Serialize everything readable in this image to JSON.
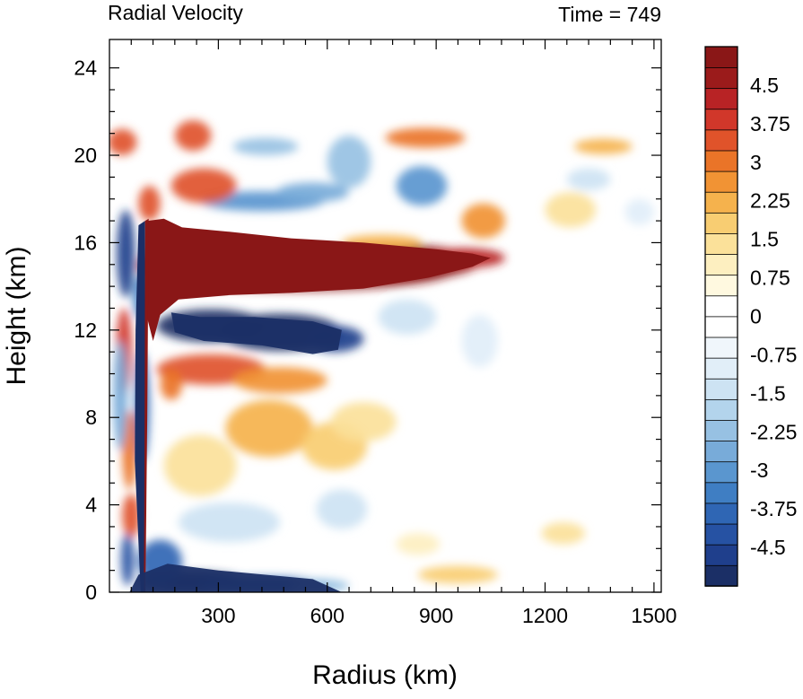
{
  "chart_data": {
    "type": "heatmap",
    "title": "Radial Velocity",
    "subtitle": "Time = 749",
    "xlabel": "Radius (km)",
    "ylabel": "Height (km)",
    "xlim": [
      0,
      1520
    ],
    "ylim": [
      0,
      25.3
    ],
    "x_ticks": [
      300,
      600,
      900,
      1200,
      1500
    ],
    "x_tick_labels": [
      "300",
      "600",
      "900",
      "1200",
      "1500"
    ],
    "y_ticks": [
      0,
      4,
      8,
      12,
      16,
      20,
      24
    ],
    "y_tick_labels": [
      "0",
      "4",
      "8",
      "12",
      "16",
      "20",
      "24"
    ],
    "colorbar": {
      "min": -5.25,
      "max": 5.25,
      "step": 0.375,
      "tick_labels": [
        "4.5",
        "3.75",
        "3",
        "2.25",
        "1.5",
        "0.75",
        "0",
        "-0.75",
        "-1.5",
        "-2.25",
        "-3",
        "-3.75",
        "-4.5"
      ],
      "tick_values": [
        4.5,
        3.75,
        3,
        2.25,
        1.5,
        0.75,
        0,
        -0.75,
        -1.5,
        -2.25,
        -3,
        -3.75,
        -4.5
      ],
      "colors_low_to_high": [
        "#1b2f66",
        "#1f3f8c",
        "#2652a3",
        "#2f66b4",
        "#3f7ec3",
        "#5a96cf",
        "#78abd9",
        "#97c1e3",
        "#b3d4ec",
        "#cde3f3",
        "#e1eef8",
        "#f0f6fb",
        "#ffffff",
        "#ffffff",
        "#fff9e0",
        "#fdefc0",
        "#fbe19a",
        "#f8cd72",
        "#f5b24d",
        "#f19334",
        "#ea7428",
        "#e0532a",
        "#d1372a",
        "#b82325",
        "#9b1b1b",
        "#8a1717"
      ]
    },
    "features": [
      {
        "name": "upper outflow jet",
        "r_range": [
          110,
          1050
        ],
        "z_center": 14.9,
        "peak": 6.0
      },
      {
        "name": "inflow layer below outflow",
        "r_range": [
          140,
          640
        ],
        "z_center": 12.0,
        "peak": -5.5
      },
      {
        "name": "boundary-layer inflow",
        "r_range": [
          40,
          640
        ],
        "z_center": 0.4,
        "peak": -5.0
      },
      {
        "name": "upper inflow bands",
        "r_range": [
          300,
          880
        ],
        "z_center": 18.2,
        "peak": -3.2
      },
      {
        "name": "upper outflow bands",
        "r_range": [
          150,
          1400
        ],
        "z_center": 20.3,
        "peak": 2.5
      }
    ]
  }
}
